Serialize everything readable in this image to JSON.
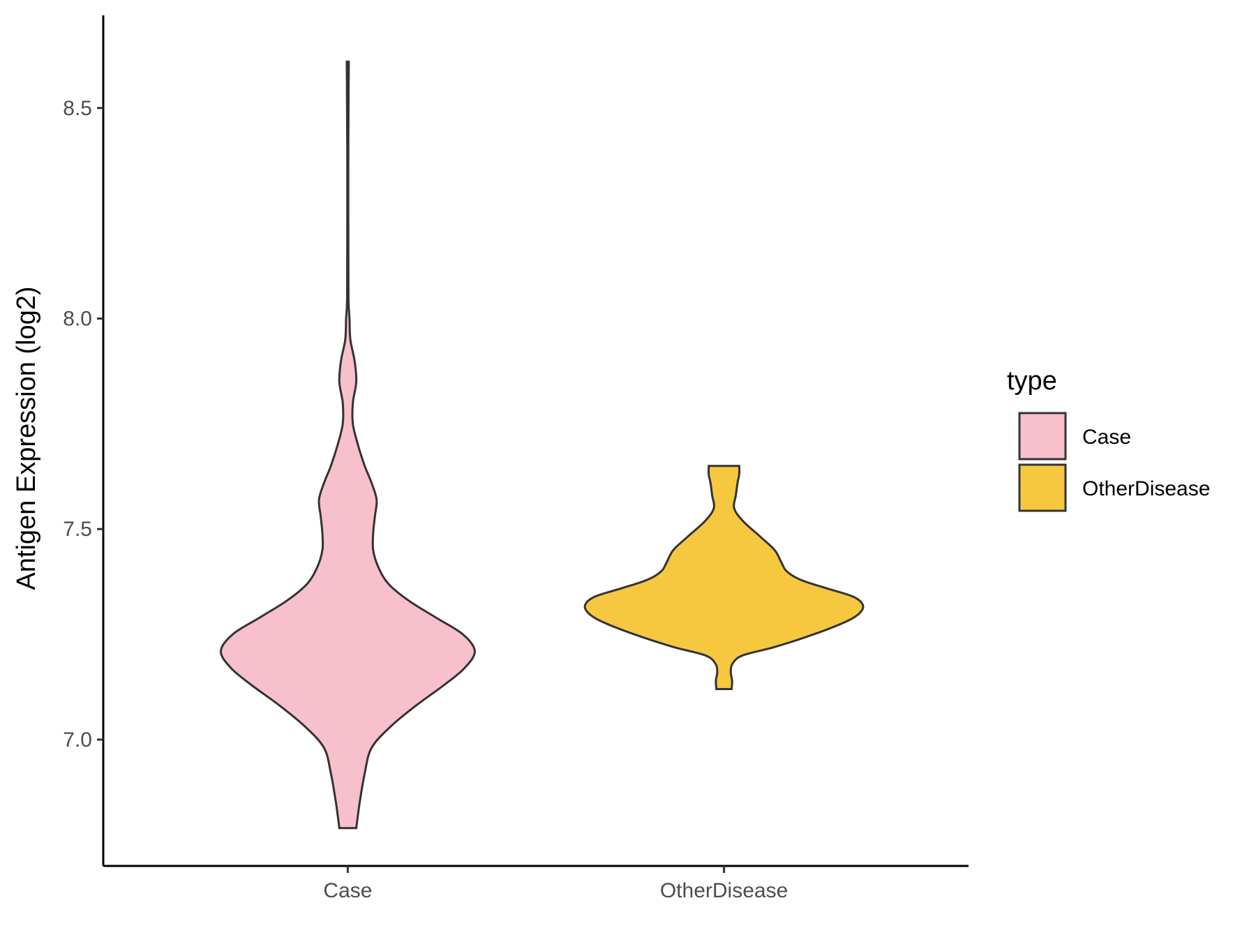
{
  "chart_data": {
    "type": "violin",
    "xlabel": "",
    "ylabel": "Antigen Expression (log2)",
    "ylim": [
      6.7,
      8.72
    ],
    "yticks": [
      7.0,
      7.5,
      8.0,
      8.5
    ],
    "ytick_labels": [
      "7.0",
      "7.5",
      "8.0",
      "8.5"
    ],
    "categories": [
      "Case",
      "OtherDisease"
    ],
    "grid": false,
    "legend": {
      "title": "type",
      "position": "right",
      "entries": [
        {
          "label": "Case",
          "color": "#F8C0CC"
        },
        {
          "label": "OtherDisease",
          "color": "#F6C83F"
        }
      ]
    },
    "series": [
      {
        "name": "Case",
        "color": "#F8C0CC",
        "min": 6.79,
        "max": 8.61,
        "density": [
          [
            6.79,
            0.05
          ],
          [
            6.85,
            0.07
          ],
          [
            6.92,
            0.1
          ],
          [
            6.98,
            0.14
          ],
          [
            7.03,
            0.25
          ],
          [
            7.08,
            0.4
          ],
          [
            7.13,
            0.57
          ],
          [
            7.17,
            0.69
          ],
          [
            7.21,
            0.75
          ],
          [
            7.25,
            0.68
          ],
          [
            7.29,
            0.52
          ],
          [
            7.33,
            0.36
          ],
          [
            7.37,
            0.24
          ],
          [
            7.41,
            0.18
          ],
          [
            7.45,
            0.15
          ],
          [
            7.49,
            0.15
          ],
          [
            7.53,
            0.16
          ],
          [
            7.57,
            0.17
          ],
          [
            7.61,
            0.14
          ],
          [
            7.65,
            0.1
          ],
          [
            7.7,
            0.06
          ],
          [
            7.75,
            0.03
          ],
          [
            7.8,
            0.03
          ],
          [
            7.85,
            0.05
          ],
          [
            7.9,
            0.04
          ],
          [
            7.95,
            0.015
          ],
          [
            8.0,
            0.01
          ],
          [
            8.05,
            0.004
          ],
          [
            8.2,
            0.003
          ],
          [
            8.4,
            0.003
          ],
          [
            8.55,
            0.005
          ],
          [
            8.61,
            0.006
          ]
        ]
      },
      {
        "name": "OtherDisease",
        "color": "#F6C83F",
        "min": 7.12,
        "max": 7.65,
        "density": [
          [
            7.12,
            0.045
          ],
          [
            7.14,
            0.048
          ],
          [
            7.16,
            0.04
          ],
          [
            7.18,
            0.05
          ],
          [
            7.2,
            0.11
          ],
          [
            7.22,
            0.3
          ],
          [
            7.25,
            0.53
          ],
          [
            7.28,
            0.72
          ],
          [
            7.3,
            0.8
          ],
          [
            7.32,
            0.82
          ],
          [
            7.34,
            0.76
          ],
          [
            7.36,
            0.6
          ],
          [
            7.38,
            0.45
          ],
          [
            7.4,
            0.37
          ],
          [
            7.42,
            0.34
          ],
          [
            7.45,
            0.3
          ],
          [
            7.48,
            0.22
          ],
          [
            7.52,
            0.11
          ],
          [
            7.55,
            0.06
          ],
          [
            7.58,
            0.07
          ],
          [
            7.61,
            0.08
          ],
          [
            7.63,
            0.09
          ],
          [
            7.65,
            0.09
          ]
        ]
      }
    ]
  }
}
